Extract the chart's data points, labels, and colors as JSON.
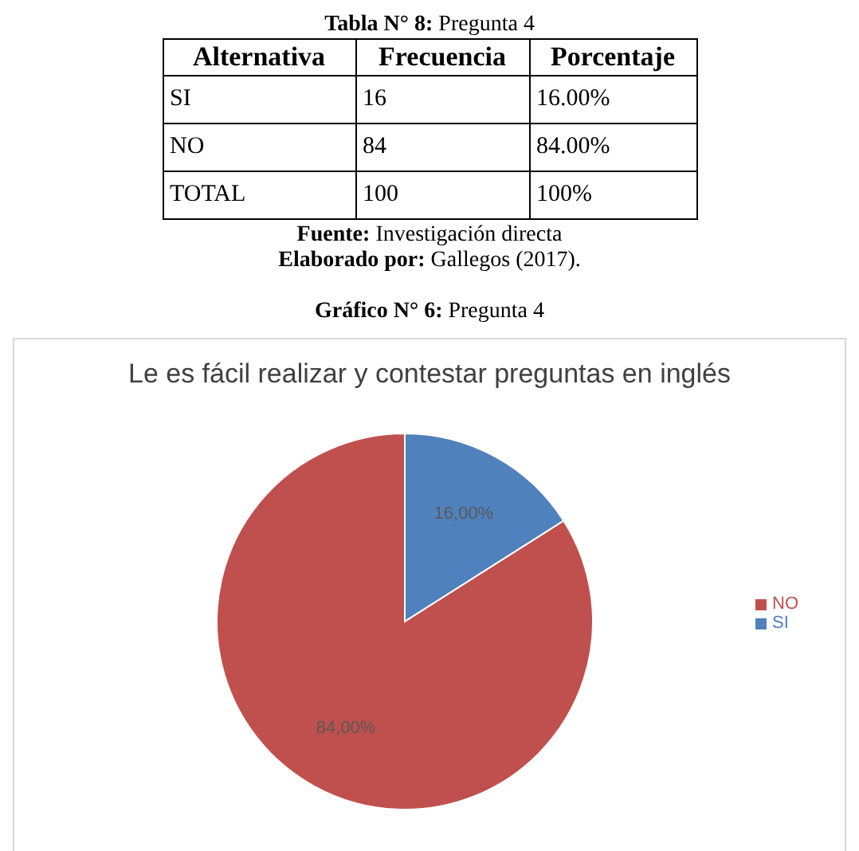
{
  "chart_data": {
    "type": "pie",
    "title": "Le es fácil realizar y contestar preguntas en inglés",
    "categories": [
      "SI",
      "NO"
    ],
    "values": [
      16,
      84
    ],
    "colors": [
      "#4f81bd",
      "#c0504d"
    ],
    "value_labels": [
      "16,00%",
      "84,00%"
    ],
    "legend": "right",
    "annotations": [
      "Tabla N° 8: Pregunta 4",
      "Alternativa",
      "Frecuencia",
      "Porcentaje",
      "SI",
      "16",
      "16.00%",
      "NO",
      "84",
      "84.00%",
      "TOTAL",
      "100",
      "100%",
      "Fuente: Investigación directa",
      "Elaborado por: Gallegos (2017).",
      "Gráfico N°  6: Pregunta 4"
    ]
  }
}
